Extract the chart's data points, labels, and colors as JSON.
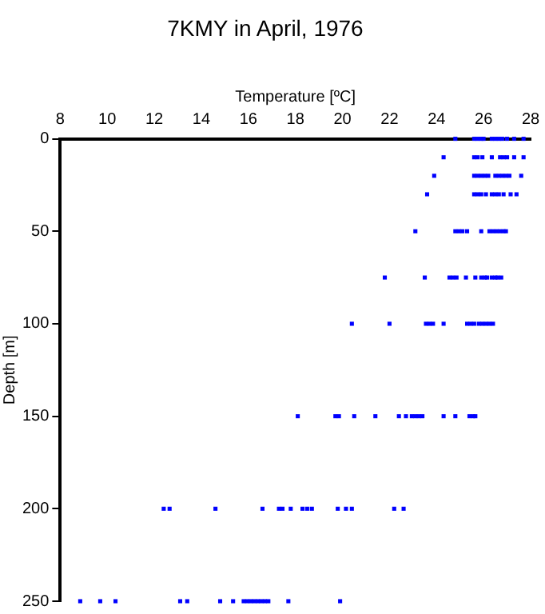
{
  "chart_data": {
    "type": "scatter",
    "title": "7KMY in April, 1976",
    "xlabel": "Temperature [ºC]",
    "ylabel": "Depth [m]",
    "xlim": [
      8,
      28
    ],
    "xticks": [
      8,
      10,
      12,
      14,
      16,
      18,
      20,
      22,
      24,
      26,
      28
    ],
    "ylim": [
      250,
      0
    ],
    "yticks": [
      0,
      50,
      100,
      150,
      200,
      250
    ],
    "grid": false,
    "legend": false,
    "marker": "square",
    "series": [
      {
        "color": "#0000ff",
        "x": [
          24.8,
          25.6,
          25.75,
          25.9,
          26.0,
          26.35,
          26.5,
          26.65,
          26.8,
          27.0,
          27.3,
          27.7,
          24.3,
          25.6,
          25.75,
          25.95,
          26.35,
          26.7,
          26.85,
          27.0,
          27.3,
          27.7,
          23.9,
          25.6,
          25.75,
          25.9,
          26.05,
          26.2,
          26.5,
          26.65,
          26.8,
          26.95,
          27.1,
          27.6,
          23.6,
          25.6,
          25.75,
          25.9,
          26.1,
          26.35,
          26.5,
          26.65,
          26.85,
          27.15,
          27.4,
          23.1,
          24.8,
          24.95,
          25.1,
          25.3,
          25.9,
          26.25,
          26.4,
          26.55,
          26.7,
          26.85,
          26.95,
          21.8,
          23.5,
          24.55,
          24.7,
          24.85,
          25.25,
          25.65,
          25.9,
          26.05,
          26.15,
          26.35,
          26.5,
          26.6,
          26.75,
          20.4,
          22.0,
          23.55,
          23.7,
          23.85,
          24.3,
          25.3,
          25.45,
          25.6,
          25.8,
          25.95,
          26.1,
          26.25,
          26.4,
          18.1,
          19.7,
          19.85,
          20.5,
          21.4,
          22.4,
          22.7,
          22.95,
          23.1,
          23.25,
          23.4,
          24.3,
          24.8,
          25.4,
          25.55,
          25.65,
          12.4,
          12.65,
          14.6,
          16.6,
          17.3,
          17.45,
          17.8,
          18.3,
          18.5,
          18.7,
          19.8,
          20.15,
          20.4,
          22.2,
          22.6,
          8.85,
          9.7,
          10.35,
          13.1,
          13.4,
          14.8,
          15.35,
          15.8,
          15.95,
          16.1,
          16.25,
          16.4,
          16.55,
          16.7,
          16.85,
          17.7,
          19.9
        ],
        "values": [
          0,
          0,
          0,
          0,
          0,
          0,
          0,
          0,
          0,
          0,
          0,
          0,
          10,
          10,
          10,
          10,
          10,
          10,
          10,
          10,
          10,
          10,
          20,
          20,
          20,
          20,
          20,
          20,
          20,
          20,
          20,
          20,
          20,
          20,
          30,
          30,
          30,
          30,
          30,
          30,
          30,
          30,
          30,
          30,
          30,
          50,
          50,
          50,
          50,
          50,
          50,
          50,
          50,
          50,
          50,
          50,
          50,
          75,
          75,
          75,
          75,
          75,
          75,
          75,
          75,
          75,
          75,
          75,
          75,
          75,
          75,
          100,
          100,
          100,
          100,
          100,
          100,
          100,
          100,
          100,
          100,
          100,
          100,
          100,
          100,
          150,
          150,
          150,
          150,
          150,
          150,
          150,
          150,
          150,
          150,
          150,
          150,
          150,
          150,
          150,
          150,
          200,
          200,
          200,
          200,
          200,
          200,
          200,
          200,
          200,
          200,
          200,
          200,
          200,
          200,
          200,
          250,
          250,
          250,
          250,
          250,
          250,
          250,
          250,
          250,
          250,
          250,
          250,
          250,
          250,
          250,
          250,
          250
        ]
      }
    ]
  }
}
